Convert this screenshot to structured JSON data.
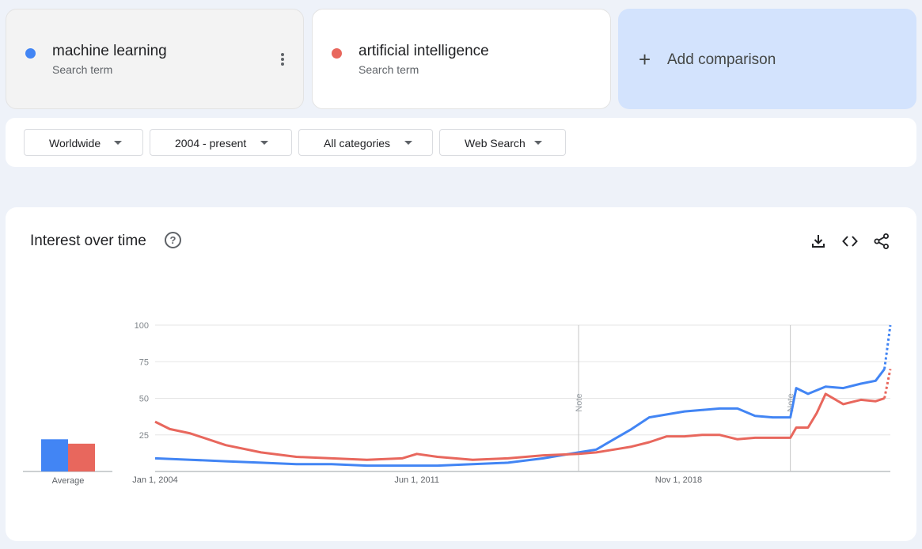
{
  "terms": [
    {
      "name": "machine learning",
      "sub": "Search term",
      "color": "#4285f4"
    },
    {
      "name": "artificial intelligence",
      "sub": "Search term",
      "color": "#e8675d"
    }
  ],
  "add_comparison": {
    "label": "Add comparison",
    "icon": "plus-icon"
  },
  "filters": {
    "region": "Worldwide",
    "period": "2004 - present",
    "category": "All categories",
    "search_type": "Web Search"
  },
  "chart_card": {
    "title": "Interest over time",
    "icons": [
      "help-icon",
      "download-icon",
      "embed-code-icon",
      "share-icon"
    ]
  },
  "chart_data": {
    "type": "line",
    "ylim": [
      0,
      100
    ],
    "yticks": [
      25,
      50,
      75,
      100
    ],
    "xticks": [
      "Jan 1, 2004",
      "Jun 1, 2011",
      "Nov 1, 2018"
    ],
    "x_range": [
      "2004-01",
      "2024-11"
    ],
    "notes": [
      {
        "date": "2016-01",
        "label": "Note"
      },
      {
        "date": "2022-01",
        "label": "Note"
      }
    ],
    "average": {
      "label": "Average",
      "values": [
        22,
        19
      ]
    },
    "series": [
      {
        "name": "machine learning",
        "color": "#4285f4",
        "points": [
          [
            "2004-01",
            9
          ],
          [
            "2005-01",
            8
          ],
          [
            "2006-01",
            7
          ],
          [
            "2007-01",
            6
          ],
          [
            "2008-01",
            5
          ],
          [
            "2009-01",
            5
          ],
          [
            "2010-01",
            4
          ],
          [
            "2011-01",
            4
          ],
          [
            "2012-01",
            4
          ],
          [
            "2013-01",
            5
          ],
          [
            "2014-01",
            6
          ],
          [
            "2015-01",
            9
          ],
          [
            "2016-01",
            13
          ],
          [
            "2016-07",
            15
          ],
          [
            "2017-01",
            22
          ],
          [
            "2017-07",
            29
          ],
          [
            "2018-01",
            37
          ],
          [
            "2018-07",
            39
          ],
          [
            "2019-01",
            41
          ],
          [
            "2019-07",
            42
          ],
          [
            "2020-01",
            43
          ],
          [
            "2020-07",
            43
          ],
          [
            "2021-01",
            38
          ],
          [
            "2021-07",
            37
          ],
          [
            "2022-01",
            37
          ],
          [
            "2022-03",
            57
          ],
          [
            "2022-07",
            53
          ],
          [
            "2023-01",
            58
          ],
          [
            "2023-07",
            57
          ],
          [
            "2024-01",
            60
          ],
          [
            "2024-06",
            62
          ],
          [
            "2024-09",
            70
          ],
          [
            "2024-11",
            100
          ]
        ]
      },
      {
        "name": "artificial intelligence",
        "color": "#e8675d",
        "points": [
          [
            "2004-01",
            34
          ],
          [
            "2004-06",
            29
          ],
          [
            "2005-01",
            26
          ],
          [
            "2006-01",
            18
          ],
          [
            "2007-01",
            13
          ],
          [
            "2008-01",
            10
          ],
          [
            "2009-01",
            9
          ],
          [
            "2010-01",
            8
          ],
          [
            "2011-01",
            9
          ],
          [
            "2011-06",
            12
          ],
          [
            "2012-01",
            10
          ],
          [
            "2013-01",
            8
          ],
          [
            "2014-01",
            9
          ],
          [
            "2015-01",
            11
          ],
          [
            "2016-01",
            12
          ],
          [
            "2016-07",
            13
          ],
          [
            "2017-01",
            15
          ],
          [
            "2017-07",
            17
          ],
          [
            "2018-01",
            20
          ],
          [
            "2018-07",
            24
          ],
          [
            "2019-01",
            24
          ],
          [
            "2019-07",
            25
          ],
          [
            "2020-01",
            25
          ],
          [
            "2020-07",
            22
          ],
          [
            "2021-01",
            23
          ],
          [
            "2021-07",
            23
          ],
          [
            "2022-01",
            23
          ],
          [
            "2022-03",
            30
          ],
          [
            "2022-07",
            30
          ],
          [
            "2022-10",
            40
          ],
          [
            "2023-01",
            53
          ],
          [
            "2023-07",
            46
          ],
          [
            "2024-01",
            49
          ],
          [
            "2024-06",
            48
          ],
          [
            "2024-09",
            50
          ],
          [
            "2024-11",
            70
          ]
        ]
      }
    ]
  }
}
